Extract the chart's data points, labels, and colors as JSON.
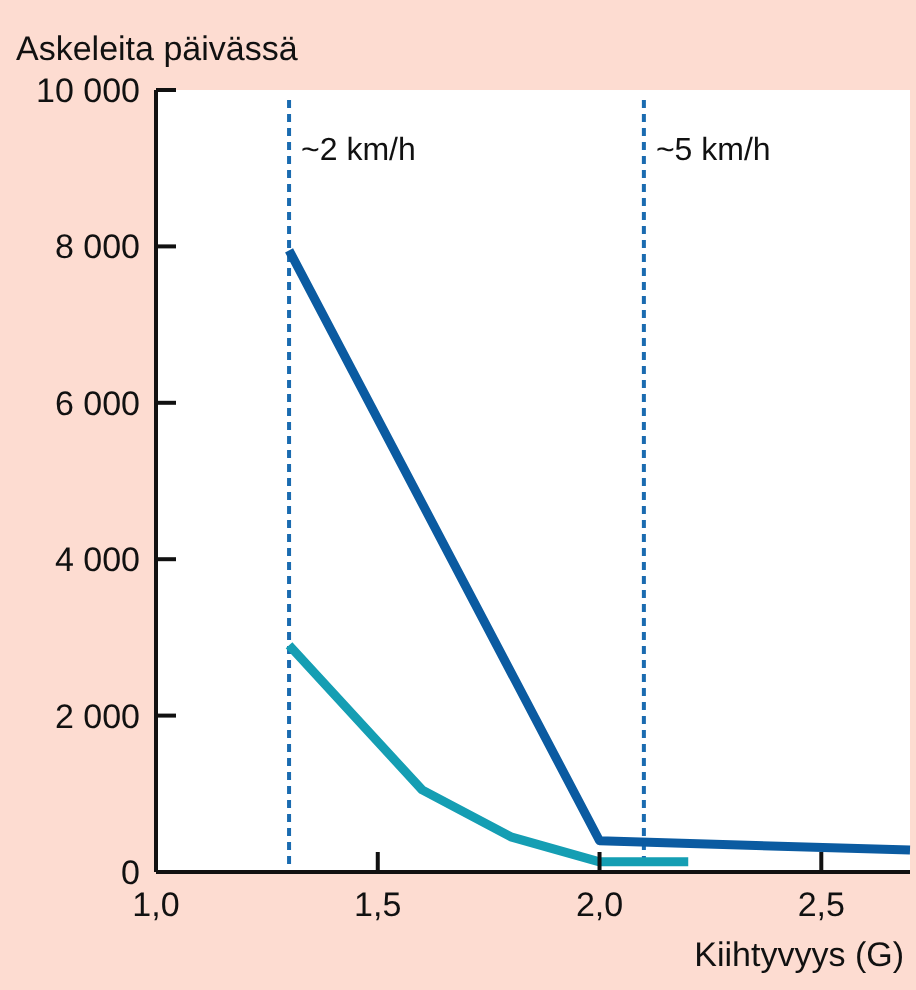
{
  "chart_data": {
    "type": "line",
    "ylabel": "Askeleita päivässä",
    "xlabel": "Kiihtyvyys (G)",
    "xlim": [
      1,
      2.7
    ],
    "xticks": [
      {
        "value": 1,
        "label": "1,0"
      },
      {
        "value": 1.5,
        "label": "1,5"
      },
      {
        "value": 2,
        "label": "2,0"
      },
      {
        "value": 2.5,
        "label": "2,5"
      }
    ],
    "ylim": [
      0,
      10000
    ],
    "yticks": [
      0,
      {
        "value": 2000,
        "label": "2 000"
      },
      {
        "value": 4000,
        "label": "4 000"
      },
      {
        "value": 6000,
        "label": "6 000"
      },
      {
        "value": 8000,
        "label": "8 000"
      },
      {
        "value": 10000,
        "label": "10 000"
      }
    ],
    "series": [
      {
        "color": "#0b5ba1",
        "x": [
          1.3,
          2.0,
          2.7
        ],
        "values": [
          7950,
          400,
          280
        ]
      },
      {
        "color": "#159eb3",
        "x": [
          1.3,
          1.6,
          1.8,
          2.0,
          2.2
        ],
        "values": [
          2900,
          1050,
          450,
          130,
          130
        ]
      }
    ],
    "ref_lines": [
      {
        "axis": "x",
        "value": 1.3,
        "label": "~2 km/h",
        "color": "#1a6bb0",
        "line_style": "dashed"
      },
      {
        "axis": "x",
        "value": 2.1,
        "label": "~5 km/h",
        "color": "#1a6bb0",
        "line_style": "dashed"
      }
    ],
    "grid": false,
    "marker": "none",
    "line_style": "solid"
  }
}
